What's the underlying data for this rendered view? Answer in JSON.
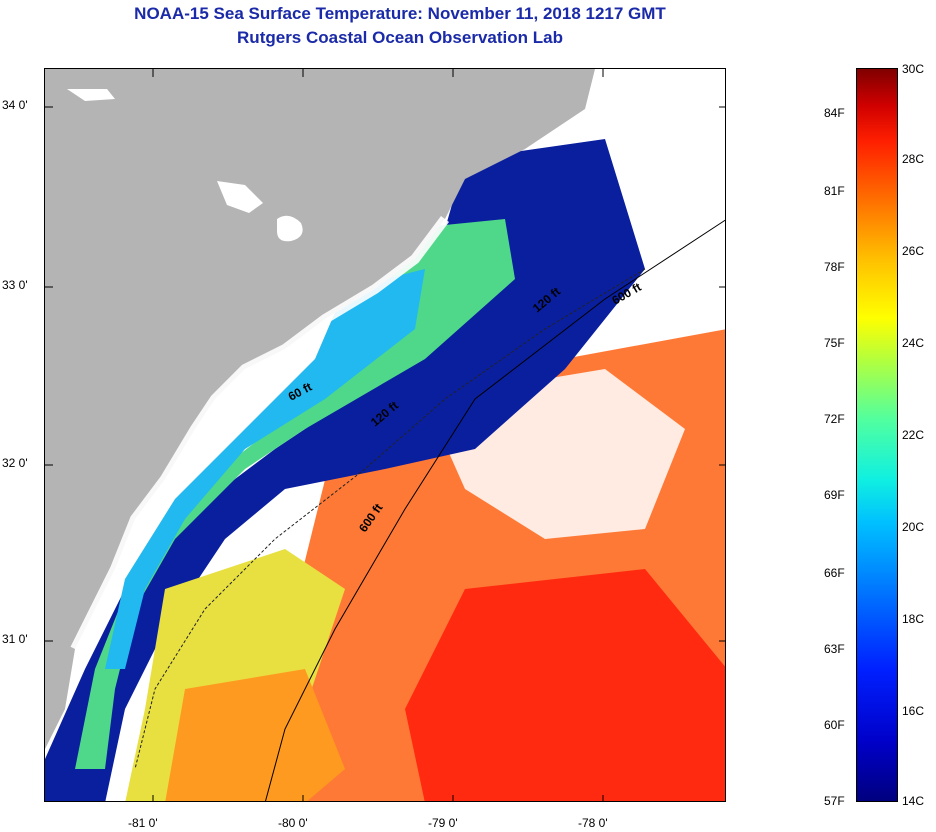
{
  "header": {
    "title": "NOAA-15 Sea Surface Temperature:  November 11, 2018 1217 GMT",
    "subtitle": "Rutgers Coastal Ocean Observation Lab"
  },
  "map": {
    "latitude_labels": [
      "34 0'",
      "33 0'",
      "32 0'",
      "31 0'"
    ],
    "longitude_labels": [
      "-81 0'",
      "-80 0'",
      "-79 0'",
      "-78 0'"
    ],
    "isobath_labels": [
      "60 ft",
      "120 ft",
      "600 ft",
      "120 ft",
      "600 ft"
    ],
    "colors": {
      "land": "#b4b4b4",
      "cloud": "#ffffff",
      "cold": "#0a1f9e",
      "warm": "#ff3a10"
    }
  },
  "colorbar": {
    "celsius_labels": [
      "30C",
      "28C",
      "26C",
      "24C",
      "22C",
      "20C",
      "18C",
      "16C",
      "14C"
    ],
    "fahrenheit_labels": [
      "84F",
      "81F",
      "78F",
      "75F",
      "72F",
      "69F",
      "66F",
      "63F",
      "60F",
      "57F"
    ]
  }
}
